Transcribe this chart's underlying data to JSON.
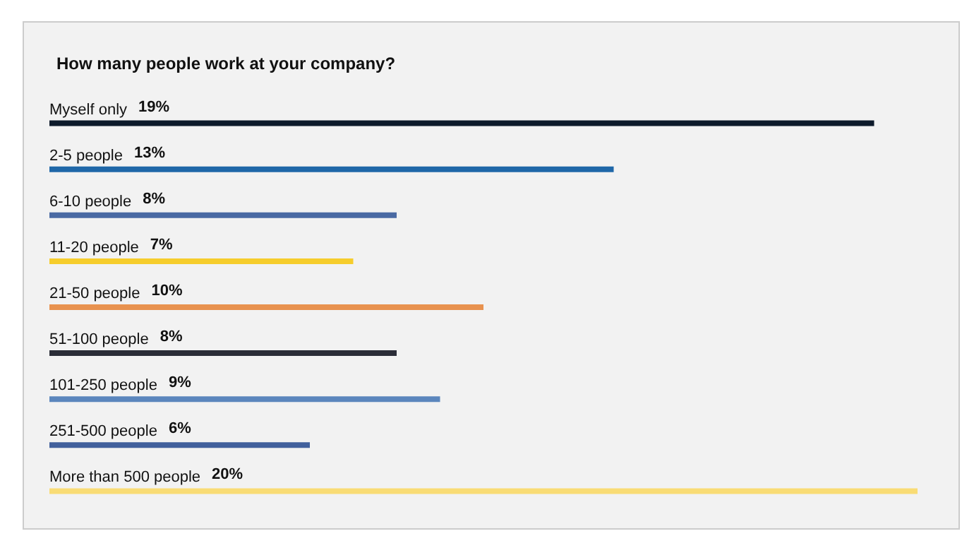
{
  "chart_data": {
    "type": "bar",
    "orientation": "horizontal",
    "title": "How many people work at your company?",
    "categories": [
      "Myself only",
      "2-5 people",
      "6-10 people",
      "11-20 people",
      "21-50 people",
      "51-100 people",
      "101-250 people",
      "251-500 people",
      "More than 500 people"
    ],
    "values": [
      19,
      13,
      8,
      7,
      10,
      8,
      9,
      6,
      20
    ],
    "value_labels": [
      "19%",
      "13%",
      "8%",
      "7%",
      "10%",
      "8%",
      "9%",
      "6%",
      "20%"
    ],
    "colors": [
      "#0d1a2b",
      "#1f67a8",
      "#4a6aa3",
      "#f6cd2c",
      "#e8924f",
      "#2b2d38",
      "#5b86bd",
      "#41609c",
      "#f9dc75"
    ]
  }
}
